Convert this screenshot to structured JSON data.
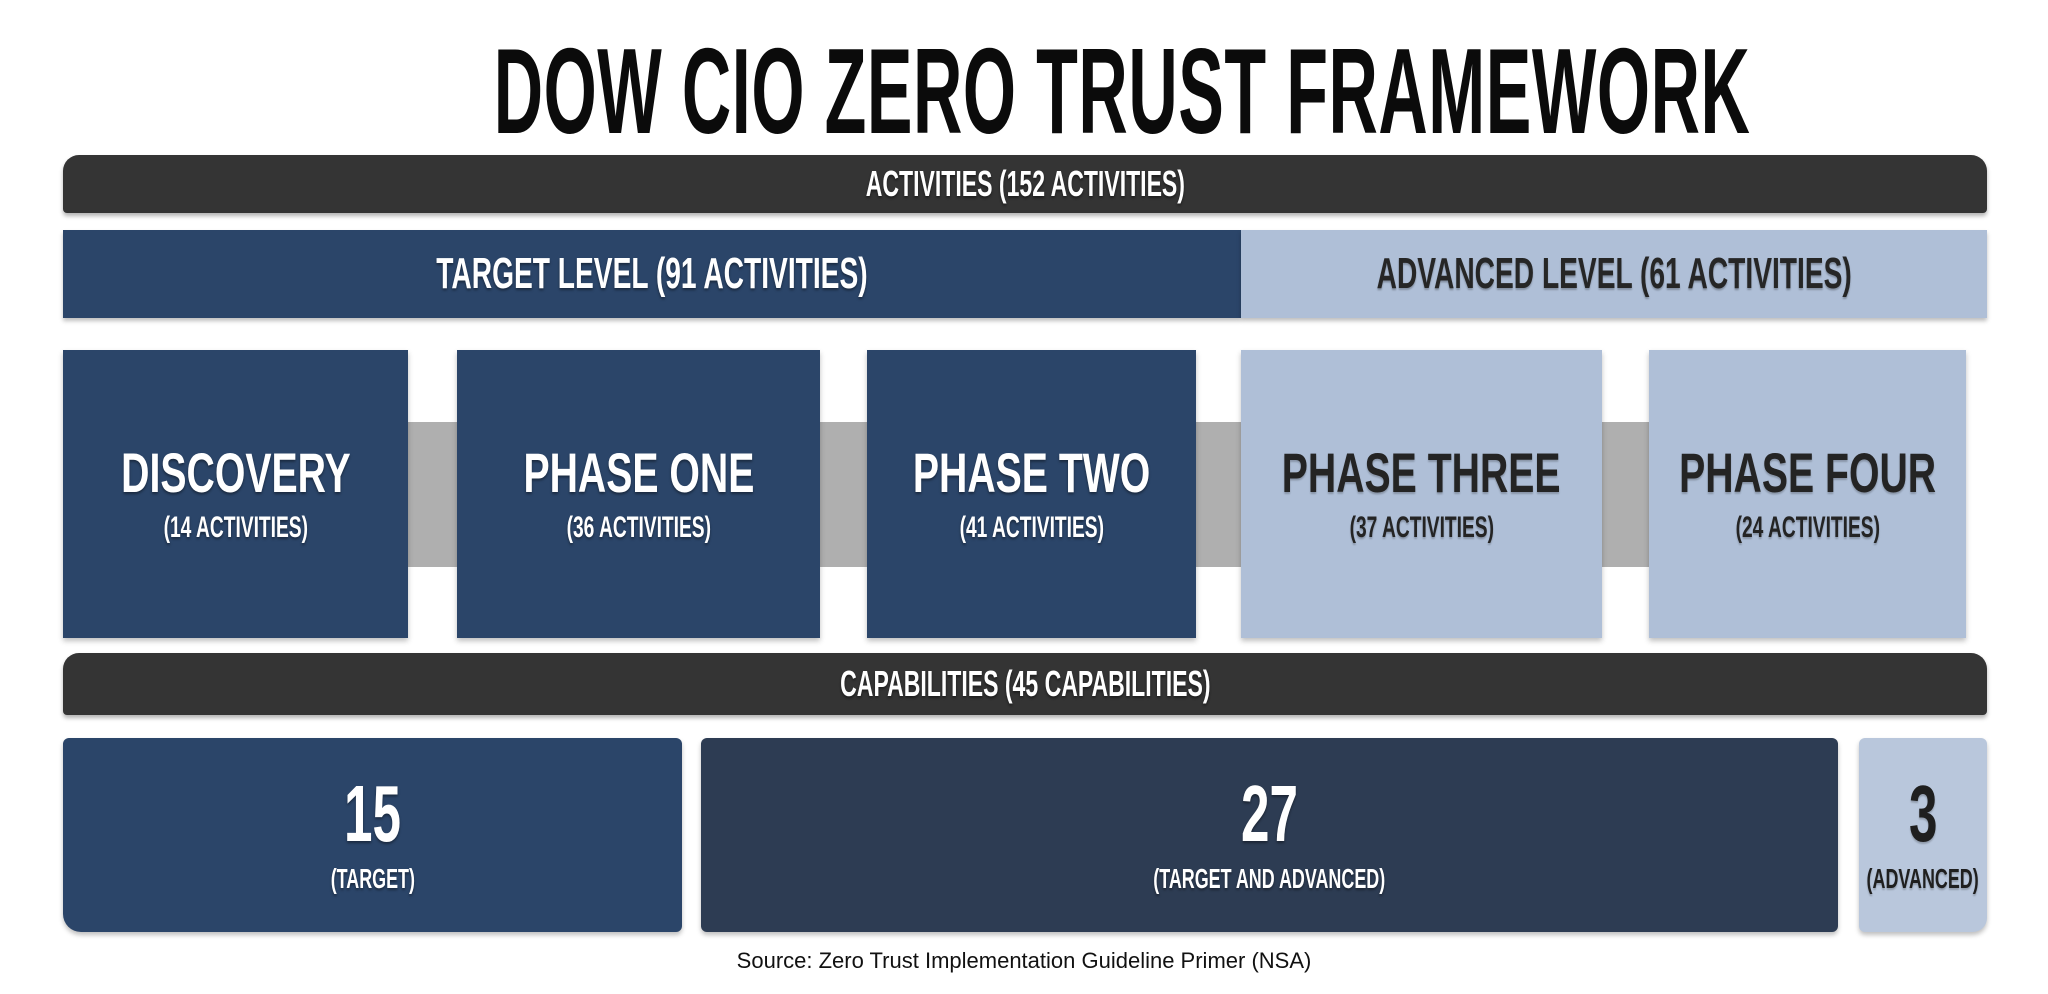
{
  "title": "DOW CIO ZERO TRUST FRAMEWORK",
  "activities_bar": {
    "label": "ACTIVITIES (152 ACTIVITIES)"
  },
  "levels": [
    {
      "label": "TARGET LEVEL (91 ACTIVITIES)",
      "variant": "dark"
    },
    {
      "label": "ADVANCED LEVEL (61 ACTIVITIES)",
      "variant": "light"
    }
  ],
  "phases": [
    {
      "name": "DISCOVERY",
      "sub": "(14 ACTIVITIES)",
      "variant": "dark"
    },
    {
      "name": "PHASE ONE",
      "sub": "(36 ACTIVITIES)",
      "variant": "dark"
    },
    {
      "name": "PHASE TWO",
      "sub": "(41 ACTIVITIES)",
      "variant": "dark"
    },
    {
      "name": "PHASE THREE",
      "sub": "(37 ACTIVITIES)",
      "variant": "light"
    },
    {
      "name": "PHASE FOUR",
      "sub": "(24 ACTIVITIES)",
      "variant": "light"
    }
  ],
  "capabilities_bar": {
    "label": "CAPABILITIES (45 CAPABILITIES)"
  },
  "capabilities": [
    {
      "value": "15",
      "sub": "(TARGET)",
      "variant": "dark"
    },
    {
      "value": "27",
      "sub": "(TARGET AND ADVANCED)",
      "variant": "darker"
    },
    {
      "value": "3",
      "sub": "(ADVANCED)",
      "variant": "light"
    }
  ],
  "source": "Source: Zero Trust Implementation Guideline Primer (NSA)",
  "colors": {
    "charcoal_bar": "#343434",
    "navy": "#2b4569",
    "light_blue": "#afbfd7",
    "slate_navy": "#2d3c53",
    "light_blue_small": "#b9c7dc",
    "connector_gray": "#afafaf",
    "background": "#ffffff"
  }
}
